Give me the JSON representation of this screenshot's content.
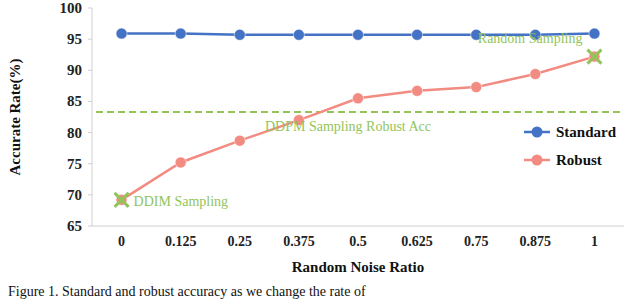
{
  "chart_data": {
    "type": "line",
    "x_label": "Random Noise Ratio",
    "y_label": "Accurate Rate(%)",
    "caption": "Figure 1.  Standard and robust accuracy as we change the rate of",
    "categories": [
      "0",
      "0.125",
      "0.25",
      "0.375",
      "0.5",
      "0.625",
      "0.75",
      "0.875",
      "1"
    ],
    "series": [
      {
        "name": "Standard",
        "color": "#4472c4",
        "marker": "circle",
        "values": [
          95.9,
          95.9,
          95.7,
          95.7,
          95.7,
          95.7,
          95.7,
          95.7,
          95.9
        ]
      },
      {
        "name": "Robust",
        "color": "#f28b82",
        "marker": "circle",
        "values": [
          69.2,
          75.2,
          78.7,
          82.0,
          85.5,
          86.7,
          87.3,
          89.4,
          92.2
        ]
      }
    ],
    "annotations": [
      {
        "text": "DDIM Sampling",
        "x": "0",
        "y": 69.2,
        "marker": "x",
        "color": "#92c45a"
      },
      {
        "text": "Random Sampling",
        "x": "1",
        "y": 92.2,
        "marker": "x",
        "color": "#92c45a"
      },
      {
        "text": "DDPM Sampling Robust Acc",
        "y": 83.3,
        "line_style": "dashed",
        "color": "#92c45a"
      }
    ],
    "ylim": [
      65,
      100
    ],
    "yticks": [
      65,
      70,
      75,
      80,
      85,
      90,
      95,
      100
    ],
    "grid": false,
    "legend": "right"
  }
}
